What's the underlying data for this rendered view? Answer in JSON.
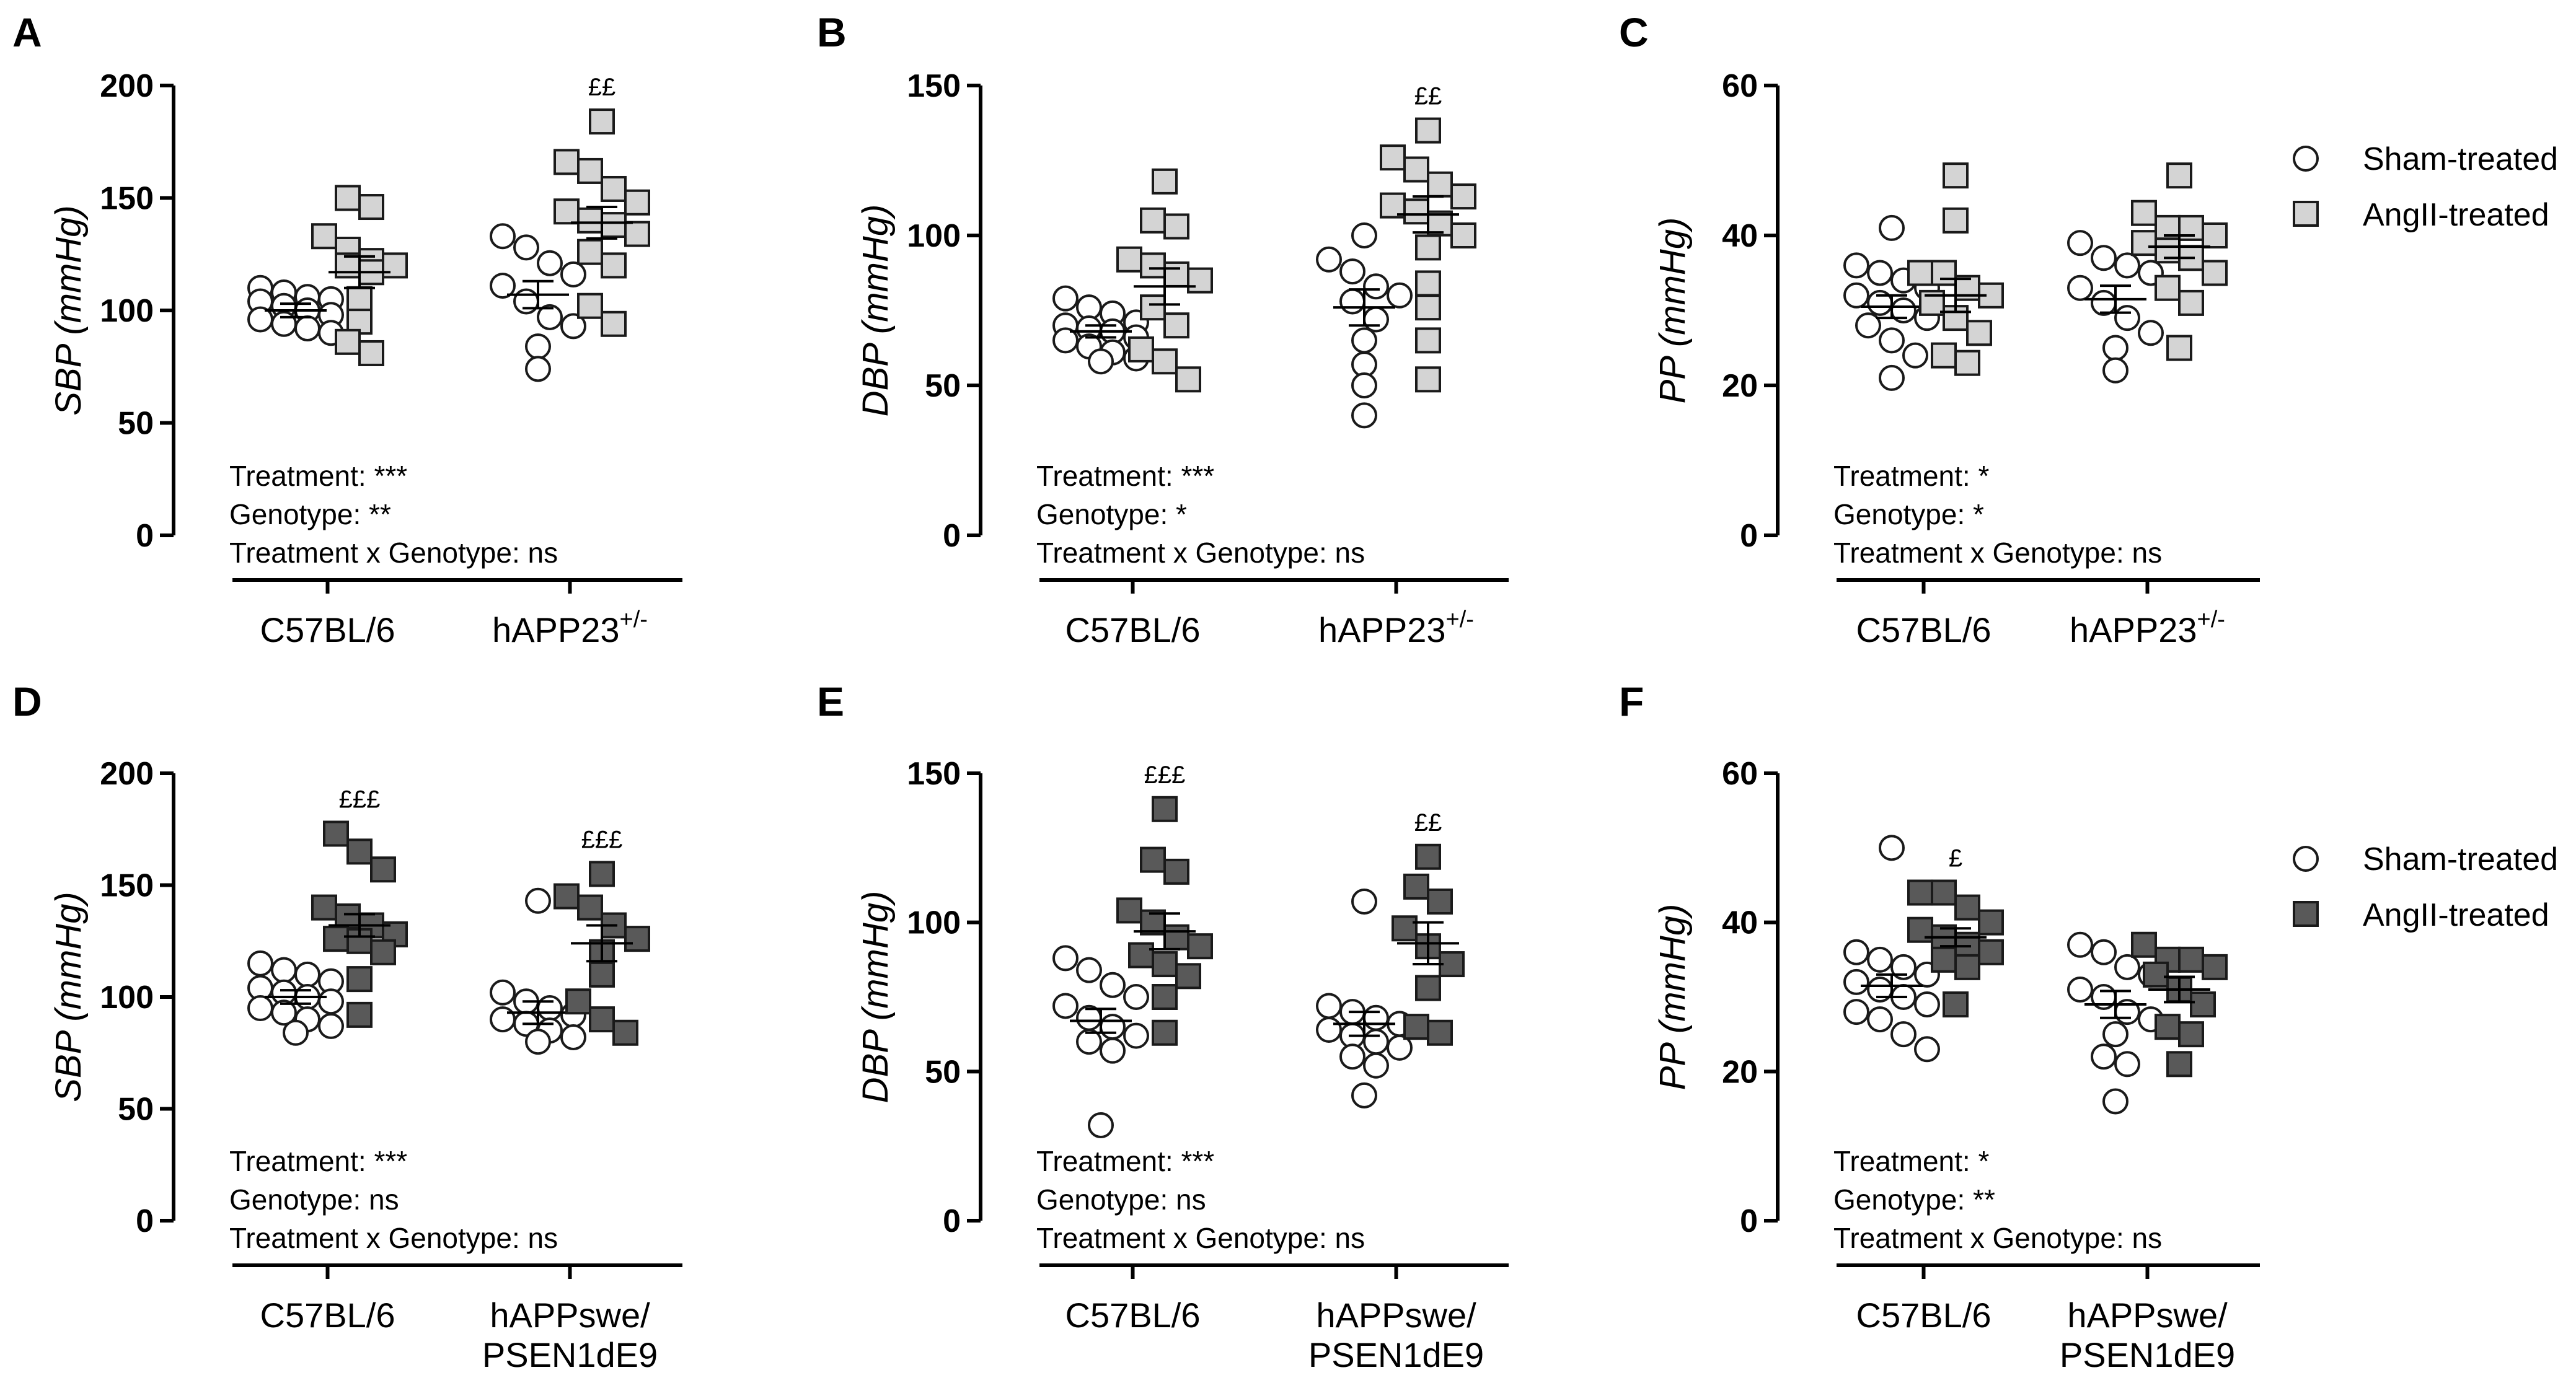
{
  "colors": {
    "sham_fill": "#ffffff",
    "angii_app23_fill": "#d4d4d4",
    "angii_appswe_fill": "#595959",
    "stroke": "#1a1a1a"
  },
  "legends": [
    {
      "sham_label": "Sham-treated",
      "angii_label": "AngII-treated",
      "angii_style": "light"
    },
    {
      "sham_label": "Sham-treated",
      "angii_label": "AngII-treated",
      "angii_style": "dark"
    }
  ],
  "chart_data": [
    {
      "panel": "A",
      "type": "scatter",
      "ylabel": "SBP (mmHg)",
      "ylim": [
        0,
        200
      ],
      "yticks": [
        0,
        50,
        100,
        150,
        200
      ],
      "categories": [
        {
          "main": "C57BL/6",
          "sup": ""
        },
        {
          "main": "hAPP23",
          "sup": "+/-"
        }
      ],
      "angii_style": "light",
      "stats": [
        "Treatment: ***",
        "Genotype: **",
        "Treatment x Genotype: ns"
      ],
      "groups": [
        {
          "cat": 0,
          "treatment": "sham",
          "mean": 100,
          "sem": 3,
          "sig": "",
          "values": [
            110,
            108,
            106,
            105,
            104,
            102,
            100,
            98,
            96,
            94,
            92,
            90
          ]
        },
        {
          "cat": 0,
          "treatment": "angii",
          "mean": 117,
          "sem": 7,
          "sig": "",
          "values": [
            150,
            146,
            133,
            127,
            122,
            120,
            120,
            117,
            105,
            95,
            86,
            81
          ]
        },
        {
          "cat": 1,
          "treatment": "sham",
          "mean": 107,
          "sem": 6,
          "sig": "",
          "values": [
            133,
            128,
            121,
            116,
            111,
            104,
            97,
            93,
            84,
            74
          ]
        },
        {
          "cat": 1,
          "treatment": "angii",
          "mean": 139,
          "sem": 7,
          "sig": "££",
          "values": [
            184,
            166,
            162,
            154,
            148,
            144,
            140,
            138,
            134,
            126,
            120,
            102,
            94
          ]
        }
      ]
    },
    {
      "panel": "B",
      "type": "scatter",
      "ylabel": "DBP (mmHg)",
      "ylim": [
        0,
        150
      ],
      "yticks": [
        0,
        50,
        100,
        150
      ],
      "categories": [
        {
          "main": "C57BL/6",
          "sup": ""
        },
        {
          "main": "hAPP23",
          "sup": "+/-"
        }
      ],
      "angii_style": "light",
      "stats": [
        "Treatment: ***",
        "Genotype: *",
        "Treatment x Genotype: ns"
      ],
      "groups": [
        {
          "cat": 0,
          "treatment": "sham",
          "mean": 68,
          "sem": 2,
          "sig": "",
          "values": [
            79,
            76,
            74,
            71,
            70,
            69,
            68,
            66,
            65,
            63,
            61,
            59,
            58
          ]
        },
        {
          "cat": 0,
          "treatment": "angii",
          "mean": 83,
          "sem": 6,
          "sig": "",
          "values": [
            118,
            105,
            103,
            92,
            90,
            87,
            85,
            76,
            70,
            62,
            58,
            52
          ]
        },
        {
          "cat": 1,
          "treatment": "sham",
          "mean": 76,
          "sem": 6,
          "sig": "",
          "values": [
            100,
            92,
            88,
            83,
            80,
            78,
            72,
            65,
            57,
            50,
            40
          ]
        },
        {
          "cat": 1,
          "treatment": "angii",
          "mean": 107,
          "sem": 6,
          "sig": "££",
          "values": [
            135,
            126,
            122,
            117,
            113,
            110,
            108,
            104,
            100,
            96,
            84,
            76,
            65,
            52
          ]
        }
      ]
    },
    {
      "panel": "C",
      "type": "scatter",
      "ylabel": "PP (mmHg)",
      "ylim": [
        0,
        60
      ],
      "yticks": [
        0,
        20,
        40,
        60
      ],
      "categories": [
        {
          "main": "C57BL/6",
          "sup": ""
        },
        {
          "main": "hAPP23",
          "sup": "+/-"
        }
      ],
      "angii_style": "light",
      "stats": [
        "Treatment: *",
        "Genotype: *",
        "Treatment x Genotype: ns"
      ],
      "groups": [
        {
          "cat": 0,
          "treatment": "sham",
          "mean": 30.5,
          "sem": 1.5,
          "sig": "",
          "values": [
            41,
            36,
            35,
            34,
            33,
            32,
            31,
            30,
            29,
            28,
            26,
            24,
            21
          ]
        },
        {
          "cat": 0,
          "treatment": "angii",
          "mean": 32,
          "sem": 2.2,
          "sig": "",
          "values": [
            48,
            42,
            35,
            35,
            33,
            32,
            31,
            29,
            27,
            24,
            23
          ]
        },
        {
          "cat": 1,
          "treatment": "sham",
          "mean": 31.5,
          "sem": 1.8,
          "sig": "",
          "values": [
            39,
            37,
            36,
            35,
            33,
            31,
            29,
            27,
            25,
            22
          ]
        },
        {
          "cat": 1,
          "treatment": "angii",
          "mean": 38.5,
          "sem": 1.5,
          "sig": "",
          "values": [
            48,
            43,
            41,
            41,
            40,
            39,
            38,
            37,
            35,
            33,
            31,
            25
          ]
        }
      ]
    },
    {
      "panel": "D",
      "type": "scatter",
      "ylabel": "SBP (mmHg)",
      "ylim": [
        0,
        200
      ],
      "yticks": [
        0,
        50,
        100,
        150,
        200
      ],
      "categories": [
        {
          "main": "C57BL/6",
          "sup": ""
        },
        {
          "main": "hAPPswe/",
          "line2": "PSEN1dE9"
        }
      ],
      "angii_style": "dark",
      "stats": [
        "Treatment: ***",
        "Genotype: ns",
        "Treatment x Genotype: ns"
      ],
      "groups": [
        {
          "cat": 0,
          "treatment": "sham",
          "mean": 100,
          "sem": 3,
          "sig": "",
          "values": [
            115,
            112,
            110,
            107,
            104,
            102,
            100,
            98,
            95,
            93,
            90,
            87,
            84
          ]
        },
        {
          "cat": 0,
          "treatment": "angii",
          "mean": 132,
          "sem": 5,
          "sig": "£££",
          "values": [
            173,
            165,
            157,
            140,
            136,
            132,
            128,
            126,
            125,
            120,
            108,
            92
          ]
        },
        {
          "cat": 1,
          "treatment": "sham",
          "mean": 93,
          "sem": 5,
          "sig": "",
          "values": [
            143,
            102,
            98,
            95,
            92,
            90,
            88,
            85,
            82,
            80
          ]
        },
        {
          "cat": 1,
          "treatment": "angii",
          "mean": 124,
          "sem": 8,
          "sig": "£££",
          "values": [
            155,
            145,
            140,
            132,
            126,
            120,
            110,
            98,
            90,
            84
          ]
        }
      ]
    },
    {
      "panel": "E",
      "type": "scatter",
      "ylabel": "DBP (mmHg)",
      "ylim": [
        0,
        150
      ],
      "yticks": [
        0,
        50,
        100,
        150
      ],
      "categories": [
        {
          "main": "C57BL/6",
          "sup": ""
        },
        {
          "main": "hAPPswe/",
          "line2": "PSEN1dE9"
        }
      ],
      "angii_style": "dark",
      "stats": [
        "Treatment: ***",
        "Genotype: ns",
        "Treatment x Genotype: ns"
      ],
      "groups": [
        {
          "cat": 0,
          "treatment": "sham",
          "mean": 67,
          "sem": 4,
          "sig": "",
          "values": [
            88,
            84,
            79,
            75,
            72,
            68,
            65,
            62,
            60,
            57,
            32
          ]
        },
        {
          "cat": 0,
          "treatment": "angii",
          "mean": 97,
          "sem": 6,
          "sig": "£££",
          "values": [
            138,
            121,
            117,
            104,
            100,
            95,
            92,
            89,
            86,
            82,
            75,
            63
          ]
        },
        {
          "cat": 1,
          "treatment": "sham",
          "mean": 66,
          "sem": 4,
          "sig": "",
          "values": [
            107,
            72,
            70,
            68,
            66,
            64,
            62,
            60,
            58,
            55,
            52,
            42
          ]
        },
        {
          "cat": 1,
          "treatment": "angii",
          "mean": 93,
          "sem": 7,
          "sig": "££",
          "values": [
            122,
            112,
            107,
            98,
            92,
            86,
            78,
            65,
            63
          ]
        }
      ]
    },
    {
      "panel": "F",
      "type": "scatter",
      "ylabel": "PP (mmHg)",
      "ylim": [
        0,
        60
      ],
      "yticks": [
        0,
        20,
        40,
        60
      ],
      "categories": [
        {
          "main": "C57BL/6",
          "sup": ""
        },
        {
          "main": "hAPPswe/",
          "line2": "PSEN1dE9"
        }
      ],
      "angii_style": "dark",
      "stats": [
        "Treatment: *",
        "Genotype: **",
        "Treatment x Genotype: ns"
      ],
      "groups": [
        {
          "cat": 0,
          "treatment": "sham",
          "mean": 31.5,
          "sem": 1.5,
          "sig": "",
          "values": [
            50,
            36,
            35,
            34,
            33,
            32,
            31,
            30,
            29,
            28,
            27,
            25,
            23
          ]
        },
        {
          "cat": 0,
          "treatment": "angii",
          "mean": 38,
          "sem": 1.2,
          "sig": "£",
          "values": [
            44,
            44,
            42,
            40,
            39,
            38,
            37,
            36,
            35,
            34,
            29
          ]
        },
        {
          "cat": 1,
          "treatment": "sham",
          "mean": 29,
          "sem": 1.8,
          "sig": "",
          "values": [
            37,
            36,
            34,
            33,
            31,
            30,
            28,
            27,
            25,
            22,
            21,
            16
          ]
        },
        {
          "cat": 1,
          "treatment": "angii",
          "mean": 31,
          "sem": 1.7,
          "sig": "",
          "values": [
            37,
            35,
            35,
            34,
            33,
            31,
            29,
            26,
            25,
            21
          ]
        }
      ]
    }
  ]
}
